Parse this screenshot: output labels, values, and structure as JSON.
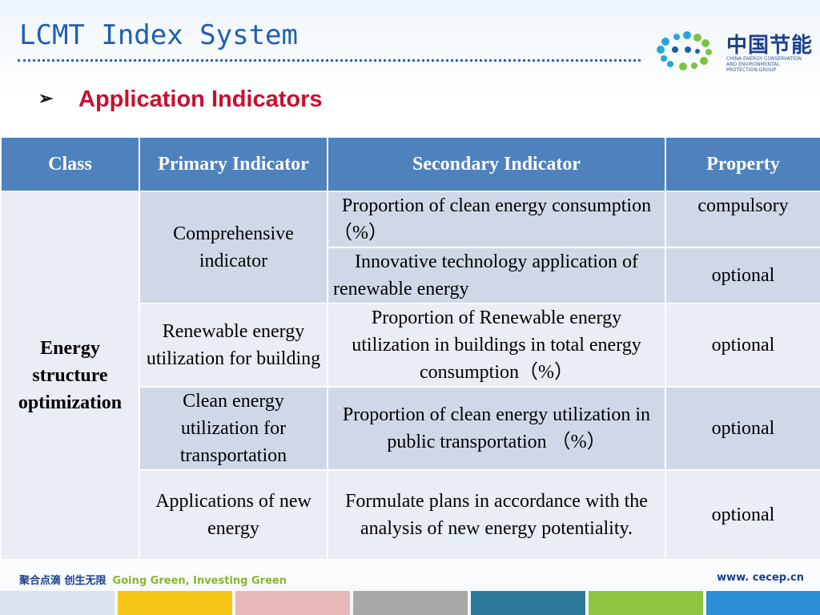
{
  "title": "LCMT Index System",
  "subtitle": "Application Indicators",
  "logo": {
    "name_cn": "中国节能",
    "name_en": "CHINA ENERGY CONSERVATION AND ENVIRONMENTAL PROTECTION GROUP"
  },
  "table": {
    "headers": [
      "Class",
      "Primary Indicator",
      "Secondary Indicator",
      "Property"
    ],
    "class_label": "Energy structure optimization",
    "rows": [
      {
        "primary": "Comprehensive indicator",
        "secondary": "Proportion of clean energy consumption（%）",
        "property": "compulsory"
      },
      {
        "primary": "",
        "secondary": "Innovative technology application of renewable energy",
        "property": "optional"
      },
      {
        "primary": "Renewable energy utilization for building",
        "secondary": "Proportion of Renewable energy utilization in buildings in total energy consumption（%）",
        "property": "optional"
      },
      {
        "primary": "Clean energy utilization for transportation",
        "secondary": "Proportion of clean energy utilization in public transportation （%）",
        "property": "optional"
      },
      {
        "primary": "Applications of new energy",
        "secondary": "Formulate plans in accordance with the analysis of new energy potentiality.",
        "property": "optional"
      }
    ]
  },
  "footer": {
    "slogan_cn": "聚合点滴 创生无限",
    "slogan_en": "Going Green, Investing Green",
    "url": "www. cecep.cn"
  },
  "colors": {
    "title": "#1f5fb0",
    "subtitle": "#c8102e",
    "header_bg": "#4f81bd",
    "row_dark": "#d0d8e8",
    "row_light": "#e9edf4",
    "stripes": [
      "#dbe3ee",
      "#f5c518",
      "#e8b8b8",
      "#a8a8a8",
      "#2e7a9a",
      "#8cc63f",
      "#2f8fd6"
    ]
  },
  "icons": {
    "bullet": "arrow-bullet-icon",
    "logo": "cecep-logo-icon"
  }
}
